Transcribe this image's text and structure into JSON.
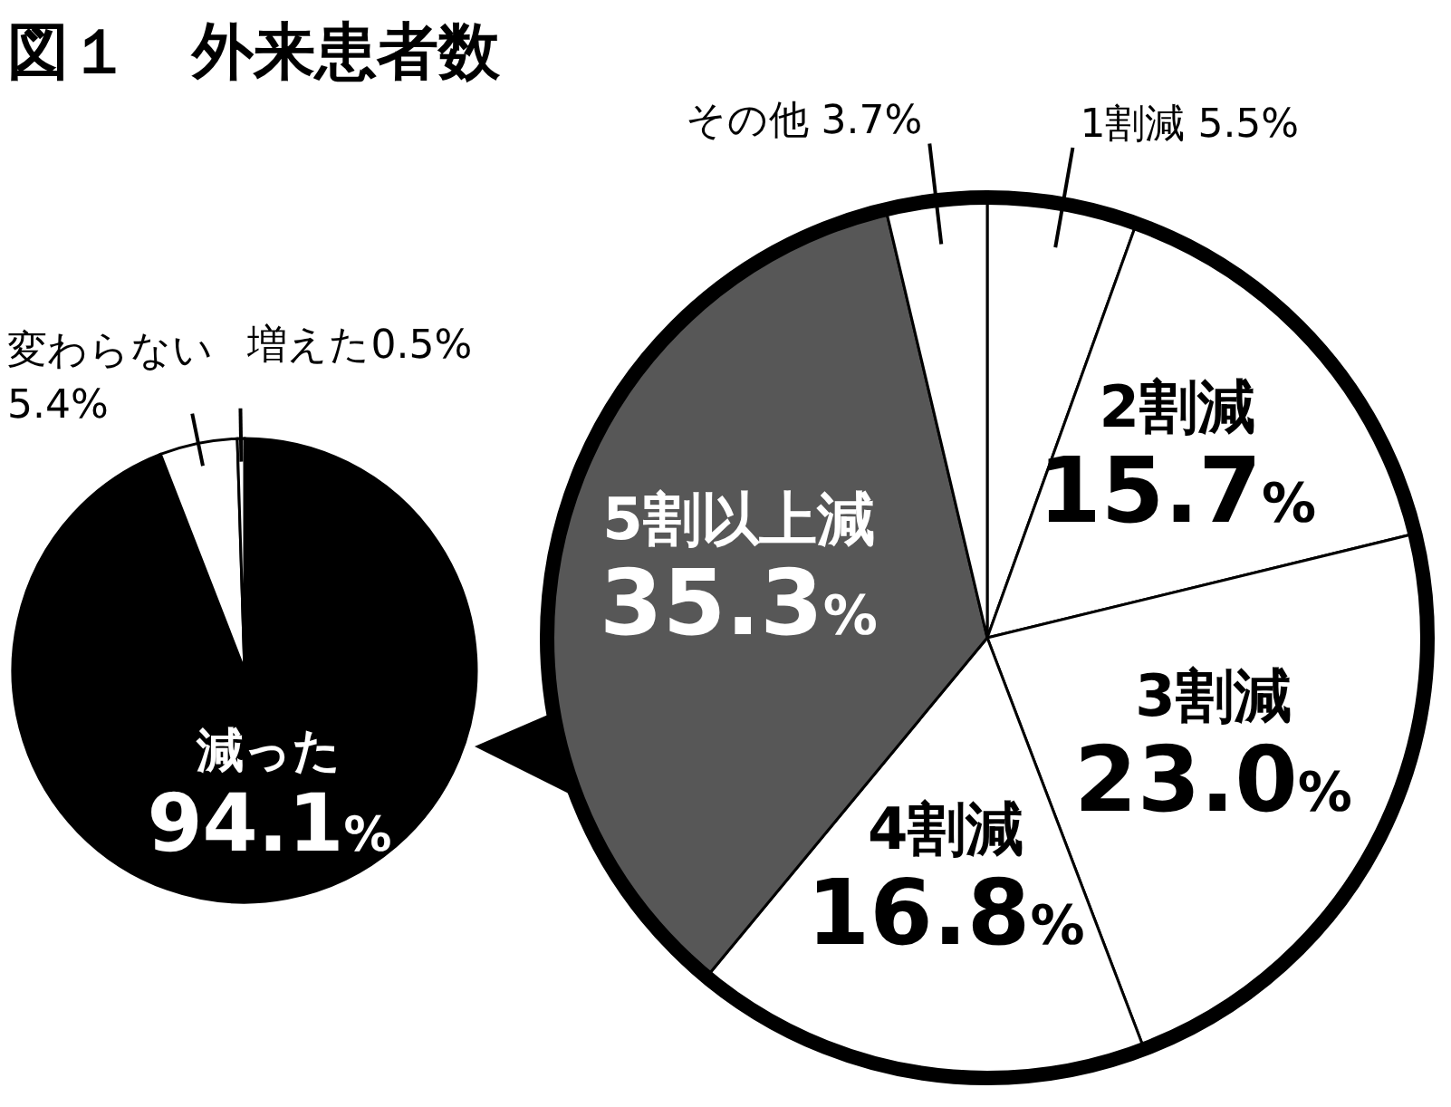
{
  "chart_data": [
    {
      "type": "pie",
      "title": "図１　外来患者数",
      "categories": [
        "減った",
        "変わらない",
        "増えた"
      ],
      "values": [
        94.1,
        5.4,
        0.5
      ],
      "colors": [
        "#000000",
        "#ffffff",
        "#ffffff"
      ],
      "value_labels": [
        "94.1%",
        "5.4%",
        "0.5%"
      ]
    },
    {
      "type": "pie",
      "categories": [
        "1割減",
        "2割減",
        "3割減",
        "4割減",
        "5割以上減",
        "その他"
      ],
      "values": [
        5.5,
        15.7,
        23.0,
        16.8,
        35.3,
        3.7
      ],
      "colors": [
        "#ffffff",
        "#ffffff",
        "#ffffff",
        "#ffffff",
        "#575757",
        "#ffffff"
      ],
      "value_labels": [
        "5.5%",
        "15.7%",
        "23.0%",
        "16.8%",
        "35.3%",
        "3.7%"
      ]
    }
  ]
}
